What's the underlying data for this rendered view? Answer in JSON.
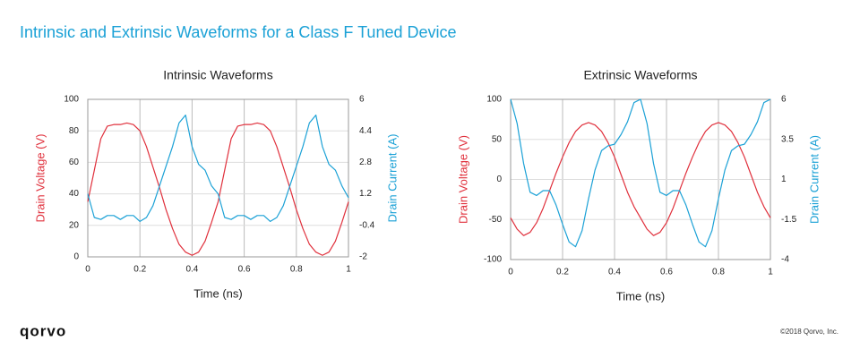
{
  "title": "Intrinsic and Extrinsic Waveforms for a Class F Tuned Device",
  "logo": "qorvo",
  "copyright": "©2018 Qorvo, Inc.",
  "chart_data": [
    {
      "type": "line",
      "title": "Intrinsic Waveforms",
      "x_label": "Time (ns)",
      "y_label": "Drain Voltage (V)",
      "y2_label": "Drain Current (A)",
      "grid": true,
      "xlim": [
        0,
        1
      ],
      "xticks": [
        0,
        0.2,
        0.4,
        0.6,
        0.8,
        1
      ],
      "ylim": [
        0,
        100
      ],
      "yticks": [
        0,
        20,
        40,
        60,
        80,
        100
      ],
      "y2lim": [
        -2,
        6
      ],
      "y2ticks": [
        -2,
        -0.4,
        1.2,
        2.8,
        4.4,
        6
      ],
      "x": [
        0,
        0.025,
        0.05,
        0.075,
        0.1,
        0.125,
        0.15,
        0.175,
        0.2,
        0.225,
        0.25,
        0.275,
        0.3,
        0.325,
        0.35,
        0.375,
        0.4,
        0.425,
        0.45,
        0.475,
        0.5,
        0.525,
        0.55,
        0.575,
        0.6,
        0.625,
        0.65,
        0.675,
        0.7,
        0.725,
        0.75,
        0.775,
        0.8,
        0.825,
        0.85,
        0.875,
        0.9,
        0.925,
        0.95,
        0.975,
        1
      ],
      "series": [
        {
          "name": "Drain Voltage",
          "color": "#e0303c",
          "values": [
            35,
            55,
            75,
            83,
            84,
            84,
            85,
            84,
            80,
            70,
            57,
            44,
            30,
            18,
            8,
            3,
            1,
            3,
            10,
            22,
            35,
            55,
            75,
            83,
            84,
            84,
            85,
            84,
            80,
            70,
            57,
            44,
            30,
            18,
            8,
            3,
            1,
            3,
            10,
            22,
            35
          ]
        },
        {
          "name": "Drain Current",
          "color": "#1ba1d6",
          "axis": "y2",
          "values": [
            1.2,
            0.0,
            -0.1,
            0.1,
            0.1,
            -0.1,
            0.1,
            0.1,
            -0.2,
            0.0,
            0.6,
            1.6,
            2.6,
            3.6,
            4.8,
            5.2,
            3.6,
            2.7,
            2.4,
            1.6,
            1.2,
            0.0,
            -0.1,
            0.1,
            0.1,
            -0.1,
            0.1,
            0.1,
            -0.2,
            0.0,
            0.6,
            1.6,
            2.6,
            3.6,
            4.8,
            5.2,
            3.6,
            2.7,
            2.4,
            1.6,
            1.0
          ]
        }
      ]
    },
    {
      "type": "line",
      "title": "Extrinsic Waveforms",
      "x_label": "Time (ns)",
      "y_label": "Drain Voltage (V)",
      "y2_label": "Drain Current (A)",
      "grid": true,
      "xlim": [
        0,
        1
      ],
      "xticks": [
        0,
        0.2,
        0.4,
        0.6,
        0.8,
        1
      ],
      "ylim": [
        -100,
        100
      ],
      "yticks": [
        -100,
        -50,
        0,
        50,
        100
      ],
      "y2lim": [
        -4,
        6
      ],
      "y2ticks": [
        -4,
        -1.5,
        1,
        3.5,
        6
      ],
      "x": [
        0,
        0.025,
        0.05,
        0.075,
        0.1,
        0.125,
        0.15,
        0.175,
        0.2,
        0.225,
        0.25,
        0.275,
        0.3,
        0.325,
        0.35,
        0.375,
        0.4,
        0.425,
        0.45,
        0.475,
        0.5,
        0.525,
        0.55,
        0.575,
        0.6,
        0.625,
        0.65,
        0.675,
        0.7,
        0.725,
        0.75,
        0.775,
        0.8,
        0.825,
        0.85,
        0.875,
        0.9,
        0.925,
        0.95,
        0.975,
        1
      ],
      "series": [
        {
          "name": "Drain Voltage",
          "color": "#e0303c",
          "values": [
            -48,
            -62,
            -70,
            -66,
            -54,
            -36,
            -14,
            8,
            28,
            46,
            60,
            68,
            71,
            68,
            60,
            46,
            28,
            6,
            -16,
            -34,
            -48,
            -62,
            -70,
            -66,
            -54,
            -36,
            -14,
            8,
            28,
            46,
            60,
            68,
            71,
            68,
            60,
            46,
            28,
            6,
            -16,
            -34,
            -48
          ]
        },
        {
          "name": "Drain Current",
          "color": "#1ba1d6",
          "axis": "y2",
          "values": [
            6,
            4.5,
            2.0,
            0.2,
            0.0,
            0.3,
            0.3,
            -0.6,
            -1.8,
            -2.9,
            -3.2,
            -2.2,
            -0.2,
            1.6,
            2.8,
            3.1,
            3.2,
            3.8,
            4.6,
            5.8,
            6,
            4.5,
            2.0,
            0.2,
            0.0,
            0.3,
            0.3,
            -0.6,
            -1.8,
            -2.9,
            -3.2,
            -2.2,
            -0.2,
            1.6,
            2.8,
            3.1,
            3.2,
            3.8,
            4.6,
            5.8,
            6
          ]
        }
      ]
    }
  ]
}
